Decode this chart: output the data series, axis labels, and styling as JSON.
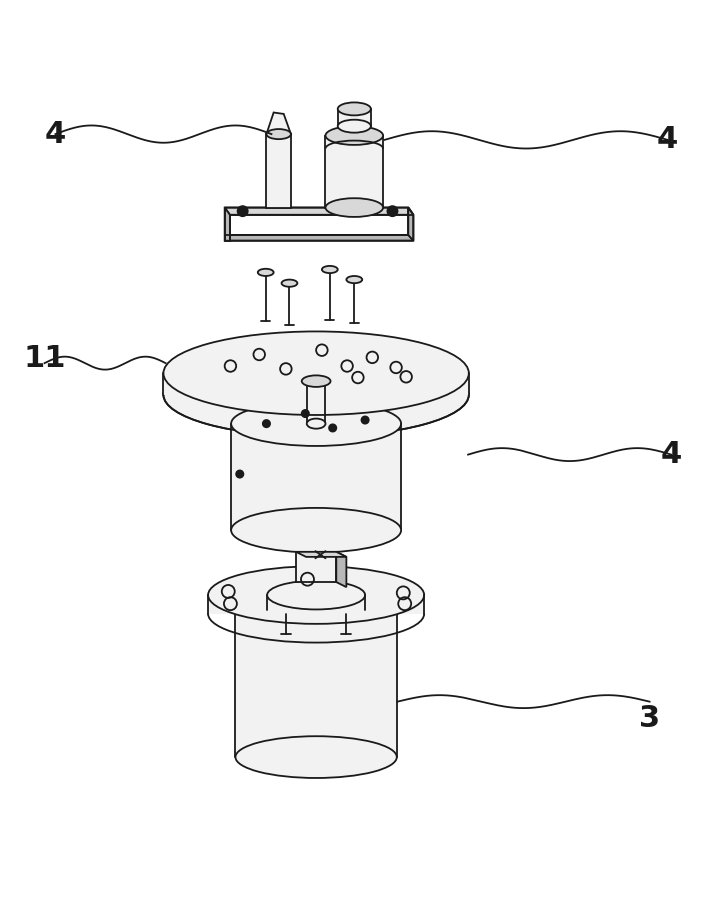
{
  "bg_color": "#ffffff",
  "line_color": "#1a1a1a",
  "fill_light": "#f2f2f2",
  "fill_mid": "#d8d8d8",
  "fill_dark": "#b8b8b8",
  "label_fontsize": 22,
  "fig_width": 7.23,
  "fig_height": 9.02
}
